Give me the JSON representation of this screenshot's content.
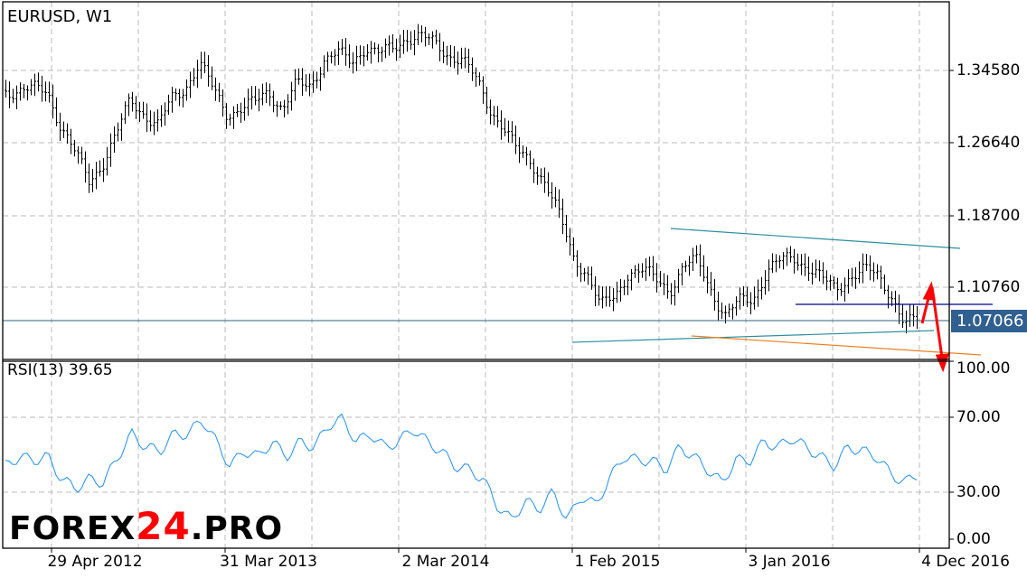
{
  "chart_data": [
    {
      "type": "ohlc",
      "title": "EURUSD, W1",
      "yticks": [
        "1.34580",
        "1.26640",
        "1.18700",
        "1.10760"
      ],
      "ylim": [
        1.02,
        1.41
      ],
      "current_price": "1.07066",
      "xticks": [
        "29 Apr 2012",
        "31 Mar 2013",
        "2 Mar 2014",
        "1 Feb 2015",
        "3 Jan 2016",
        "4 Dec 2016"
      ],
      "grid": true,
      "closes": [
        1.324,
        1.324,
        1.324,
        1.324,
        1.2843,
        1.2545,
        1.2247,
        1.2446,
        1.2743,
        1.314,
        1.2992,
        1.2843,
        1.314,
        1.3289,
        1.3537,
        1.324,
        1.2992,
        1.3041,
        1.3091,
        1.324,
        1.3041,
        1.3289,
        1.3289,
        1.3587,
        1.3637,
        1.3537,
        1.3736,
        1.3637,
        1.3686,
        1.3835,
        1.3835,
        1.3736,
        1.3637,
        1.3587,
        1.3339,
        1.3041,
        1.2843,
        1.2545,
        1.2446,
        1.2247,
        1.185,
        1.1404,
        1.1255,
        1.0858,
        1.0957,
        1.1255,
        1.1255,
        1.1155,
        1.1056,
        1.1304,
        1.1354,
        1.1056,
        1.0758,
        1.0907,
        1.0957,
        1.1255,
        1.1354,
        1.1404,
        1.1304,
        1.1155,
        1.1056,
        1.1205,
        1.1255,
        1.1205,
        1.1007,
        1.0659,
        1.0709
      ]
    },
    {
      "type": "line",
      "title": "RSI(13) 39.65",
      "yticks": [
        "100.00",
        "70.00",
        "30.00",
        "0.00"
      ],
      "ylim": [
        0,
        100
      ],
      "color": "#1e90ff",
      "values": [
        44,
        49,
        47,
        49,
        37,
        32,
        37,
        35,
        49,
        61,
        54,
        52,
        61,
        61,
        69,
        57,
        44,
        52,
        49,
        57,
        49,
        57,
        54,
        66,
        69,
        57,
        61,
        54,
        57,
        64,
        57,
        52,
        44,
        42,
        37,
        23,
        15,
        25,
        21,
        30,
        15,
        28,
        23,
        37,
        49,
        47,
        47,
        42,
        54,
        49,
        42,
        35,
        47,
        47,
        57,
        54,
        59,
        54,
        49,
        44,
        54,
        52,
        49,
        40,
        35,
        40
      ]
    }
  ],
  "annotations": {
    "trendline_color": "#2a8fa0",
    "support_color": "#f08020",
    "level_color": "#00008b",
    "arrow_color": "#ff0000"
  },
  "logo": {
    "part1": "FOREX",
    "part2": "24",
    "part3": ".PRO"
  }
}
